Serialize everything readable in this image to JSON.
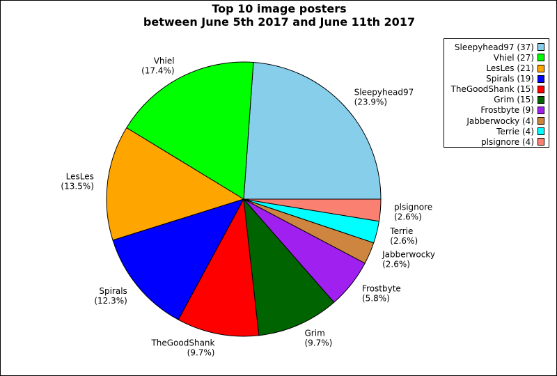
{
  "chart_data": {
    "type": "pie",
    "title": [
      "Top 10 image posters",
      "between June 5th 2017 and June 11th 2017"
    ],
    "start_angle_deg": 0,
    "direction": "counterclockwise",
    "legend_position": "top-right",
    "slices": [
      {
        "name": "Sleepyhead97",
        "value": 37,
        "percent": "(23.9%)",
        "legend": "Sleepyhead97 (37)",
        "color": "#87ceeb"
      },
      {
        "name": "Vhiel",
        "value": 27,
        "percent": "(17.4%)",
        "legend": "Vhiel (27)",
        "color": "#00ff00"
      },
      {
        "name": "LesLes",
        "value": 21,
        "percent": "(13.5%)",
        "legend": "LesLes (21)",
        "color": "#ffa500"
      },
      {
        "name": "Spirals",
        "value": 19,
        "percent": "(12.3%)",
        "legend": "Spirals (19)",
        "color": "#0000ff"
      },
      {
        "name": "TheGoodShank",
        "value": 15,
        "percent": "(9.7%)",
        "legend": "TheGoodShank (15)",
        "color": "#ff0000"
      },
      {
        "name": "Grim",
        "value": 15,
        "percent": "(9.7%)",
        "legend": "Grim (15)",
        "color": "#006400"
      },
      {
        "name": "Frostbyte",
        "value": 9,
        "percent": "(5.8%)",
        "legend": "Frostbyte (9)",
        "color": "#a020f0"
      },
      {
        "name": "Jabberwocky",
        "value": 4,
        "percent": "(2.6%)",
        "legend": "Jabberwocky (4)",
        "color": "#cd853f"
      },
      {
        "name": "Terrie",
        "value": 4,
        "percent": "(2.6%)",
        "legend": "Terrie (4)",
        "color": "#00ffff"
      },
      {
        "name": "plsignore",
        "value": 4,
        "percent": "(2.6%)",
        "legend": "plsignore (4)",
        "color": "#fa8072"
      }
    ]
  }
}
